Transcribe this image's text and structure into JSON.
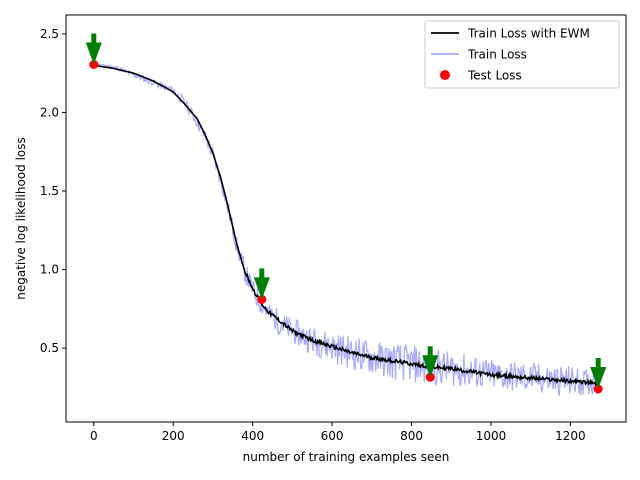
{
  "chart_data": {
    "type": "line",
    "title": "",
    "xlabel": "number of training examples seen",
    "ylabel": "negative log likelihood loss",
    "xlim": [
      -70,
      1340
    ],
    "ylim": [
      0.03,
      2.62
    ],
    "x_ticks": [
      0,
      200,
      400,
      600,
      800,
      1000,
      1200
    ],
    "y_ticks": [
      0.5,
      1.0,
      1.5,
      2.0,
      2.5
    ],
    "x_tick_labels": [
      "0",
      "200",
      "400",
      "600",
      "800",
      "1000",
      "1200"
    ],
    "y_tick_labels": [
      "0.5",
      "1.0",
      "1.5",
      "2.0",
      "2.5"
    ],
    "legend_position": "top-right",
    "series": [
      {
        "name": "Train Loss with EWM",
        "type": "line",
        "color": "#000000",
        "x": [
          0,
          50,
          100,
          150,
          200,
          230,
          260,
          280,
          300,
          320,
          340,
          360,
          380,
          400,
          420,
          440,
          460,
          480,
          500,
          550,
          600,
          650,
          700,
          750,
          800,
          850,
          900,
          950,
          1000,
          1050,
          1100,
          1150,
          1200,
          1250,
          1270
        ],
        "y": [
          2.3,
          2.28,
          2.25,
          2.2,
          2.13,
          2.05,
          1.96,
          1.86,
          1.74,
          1.58,
          1.38,
          1.16,
          0.99,
          0.88,
          0.79,
          0.73,
          0.69,
          0.65,
          0.61,
          0.55,
          0.51,
          0.47,
          0.44,
          0.42,
          0.4,
          0.38,
          0.37,
          0.35,
          0.33,
          0.32,
          0.31,
          0.3,
          0.29,
          0.28,
          0.27
        ]
      },
      {
        "name": "Train Loss",
        "type": "line",
        "color": "#aaaaff",
        "x": [
          0,
          50,
          100,
          150,
          200,
          230,
          260,
          280,
          300,
          320,
          340,
          360,
          380,
          400,
          420,
          440,
          460,
          480,
          500,
          550,
          600,
          650,
          700,
          750,
          800,
          850,
          900,
          950,
          1000,
          1050,
          1100,
          1150,
          1200,
          1250,
          1270
        ],
        "y": [
          2.31,
          2.29,
          2.24,
          2.19,
          2.14,
          2.06,
          1.94,
          1.85,
          1.73,
          1.57,
          1.37,
          1.15,
          0.99,
          0.87,
          0.79,
          0.72,
          0.68,
          0.64,
          0.61,
          0.55,
          0.51,
          0.47,
          0.44,
          0.42,
          0.4,
          0.38,
          0.37,
          0.35,
          0.33,
          0.32,
          0.31,
          0.3,
          0.29,
          0.28,
          0.27
        ],
        "noise": [
          0.0,
          0.01,
          0.02,
          0.02,
          0.03,
          0.03,
          0.04,
          0.04,
          0.05,
          0.05,
          0.06,
          0.06,
          0.07,
          0.07,
          0.07,
          0.07,
          0.08,
          0.08,
          0.08,
          0.09,
          0.1,
          0.11,
          0.11,
          0.12,
          0.12,
          0.12,
          0.11,
          0.11,
          0.1,
          0.1,
          0.1,
          0.1,
          0.1,
          0.08,
          0.06
        ]
      },
      {
        "name": "Test Loss",
        "type": "scatter",
        "color": "#ff0000",
        "x": [
          0,
          423,
          847,
          1270
        ],
        "y": [
          2.305,
          0.81,
          0.315,
          0.24
        ]
      }
    ],
    "annotations": [
      {
        "type": "arrow",
        "color": "#008000",
        "x": 0,
        "y": 2.305
      },
      {
        "type": "arrow",
        "color": "#008000",
        "x": 423,
        "y": 0.81
      },
      {
        "type": "arrow",
        "color": "#008000",
        "x": 847,
        "y": 0.315
      },
      {
        "type": "arrow",
        "color": "#008000",
        "x": 1270,
        "y": 0.24
      }
    ]
  }
}
